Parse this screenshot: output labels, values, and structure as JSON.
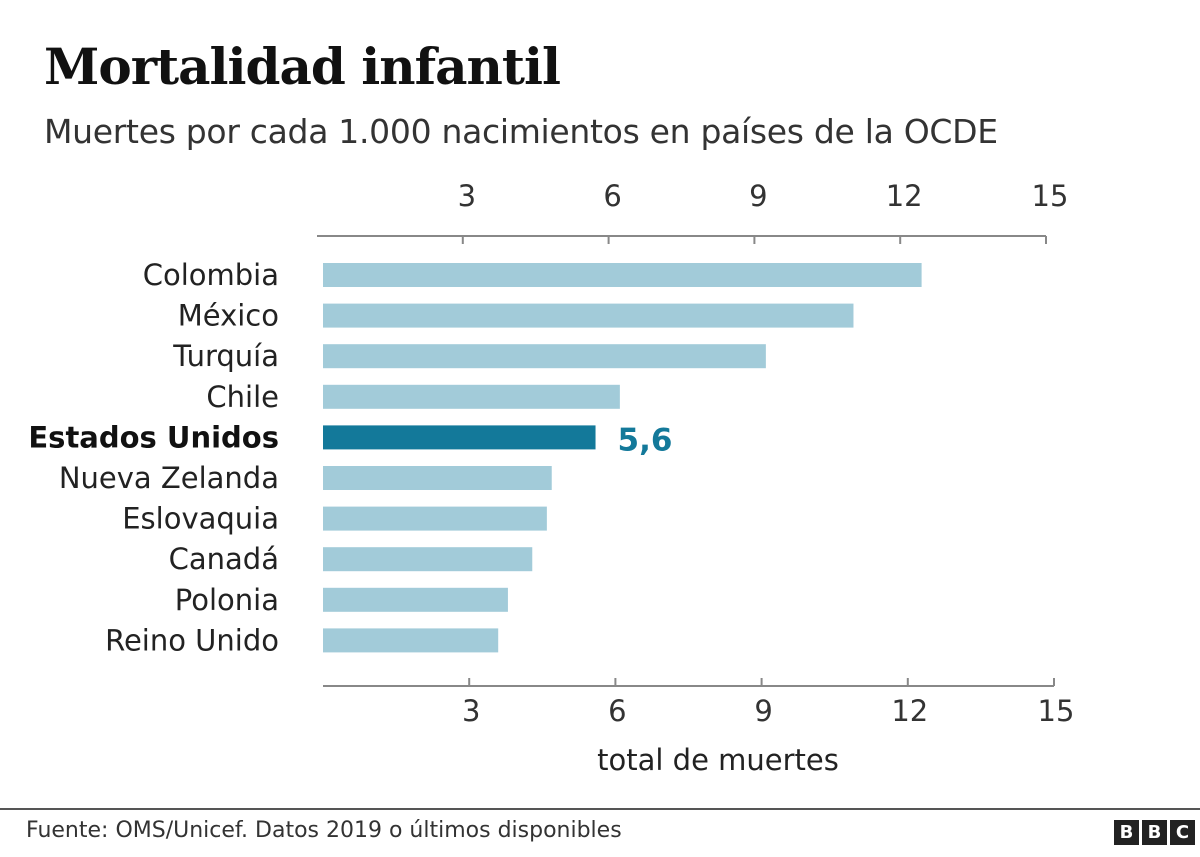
{
  "title": "Mortalidad infantil",
  "subtitle": "Muertes por cada 1.000 nacimientos en países de la OCDE",
  "chart_data": {
    "type": "bar",
    "orientation": "horizontal",
    "categories": [
      "Colombia",
      "México",
      "Turquía",
      "Chile",
      "Estados Unidos",
      "Nueva Zelanda",
      "Eslovaquia",
      "Canadá",
      "Polonia",
      "Reino Unido"
    ],
    "values": [
      12.3,
      10.9,
      9.1,
      6.1,
      5.6,
      4.7,
      4.6,
      4.3,
      3.8,
      3.6
    ],
    "highlight": {
      "category": "Estados Unidos",
      "label": "5,6"
    },
    "xlabel": "total de muertes",
    "xlim": [
      0,
      15
    ],
    "xticks": [
      3,
      6,
      9,
      12,
      15
    ],
    "axes": [
      "top",
      "bottom"
    ],
    "grid": false,
    "colors": {
      "bar": "#a2cbd9",
      "highlight": "#13799a",
      "axis": "#888888"
    }
  },
  "footer": {
    "source": "Fuente: OMS/Unicef. Datos 2019 o últimos disponibles",
    "logo_letters": [
      "B",
      "B",
      "C"
    ]
  }
}
